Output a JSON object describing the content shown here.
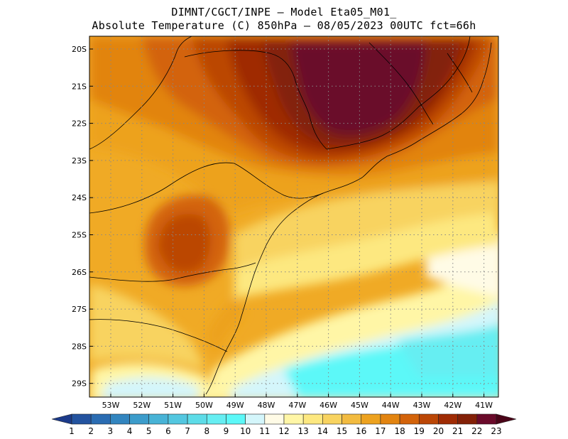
{
  "header": {
    "title_line1": "DIMNT/CGCT/INPE –  Model Eta05_M01_",
    "title_line2": "Absolute Temperature (C) 850hPa –  08/05/2023 00UTC fct=66h"
  },
  "axes": {
    "lat_labels": [
      "20S",
      "21S",
      "22S",
      "23S",
      "24S",
      "25S",
      "26S",
      "27S",
      "28S",
      "29S"
    ],
    "lon_labels": [
      "53W",
      "52W",
      "51W",
      "50W",
      "49W",
      "48W",
      "47W",
      "46W",
      "45W",
      "44W",
      "43W",
      "42W",
      "41W"
    ]
  },
  "colorbar": {
    "labels": [
      "1",
      "2",
      "3",
      "4",
      "5",
      "6",
      "7",
      "8",
      "9",
      "10",
      "11",
      "12",
      "13",
      "14",
      "15",
      "16",
      "17",
      "18",
      "19",
      "20",
      "21",
      "22",
      "23"
    ],
    "colors": [
      "#1b3a8a",
      "#23539f",
      "#2a6cb2",
      "#3285bf",
      "#3c9ccb",
      "#48b3d6",
      "#53c7e0",
      "#5ddce8",
      "#66eef2",
      "#5cf8f8",
      "#d4f6fb",
      "#fffbe6",
      "#fff6a6",
      "#fde880",
      "#f8d360",
      "#f2bb40",
      "#eda21f",
      "#e28410",
      "#d3630a",
      "#bb4605",
      "#9f2b04",
      "#832007",
      "#6a0a2a",
      "#4a0418"
    ]
  },
  "map": {
    "background": "#f0aa25"
  }
}
